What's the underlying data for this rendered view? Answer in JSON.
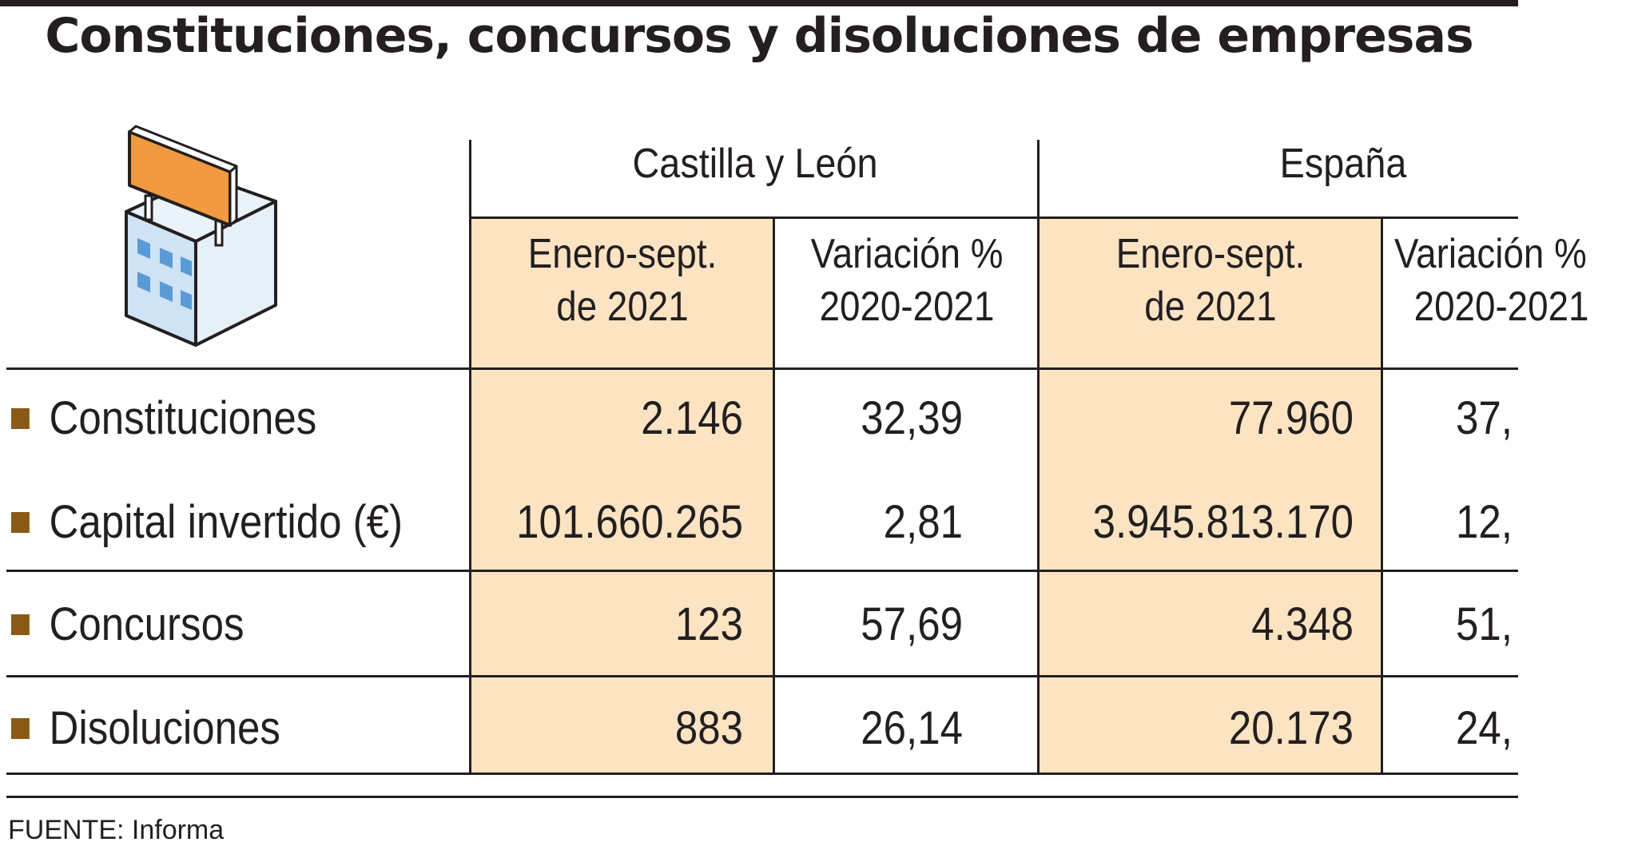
{
  "chart_data": {
    "type": "table",
    "title": "Constituciones, concursos y disoluciones de empresas",
    "groups": [
      "Castilla y León",
      "España"
    ],
    "columns": [
      {
        "group": "Castilla y León",
        "line1": "Enero-sept.",
        "line2": "de 2021"
      },
      {
        "group": "Castilla y León",
        "line1": "Variación %",
        "line2": "2020-2021"
      },
      {
        "group": "España",
        "line1": "Enero-sept.",
        "line2": "de 2021"
      },
      {
        "group": "España",
        "line1": "Variación %",
        "line2": "2020-2021"
      }
    ],
    "rows": [
      {
        "label": "Constituciones",
        "values": [
          "2.146",
          "32,39",
          "77.960",
          "37,"
        ]
      },
      {
        "label": "Capital invertido (€)",
        "values": [
          "101.660.265",
          "2,81",
          "3.945.813.170",
          "12,"
        ]
      },
      {
        "label": "Concursos",
        "values": [
          "123",
          "57,69",
          "4.348",
          "51,"
        ]
      },
      {
        "label": "Disoluciones",
        "values": [
          "883",
          "26,14",
          "20.173",
          "24,"
        ]
      }
    ],
    "source": "FUENTE: Informa"
  },
  "colors": {
    "highlight_column": "#fce4c3",
    "bullet": "#8a5a16",
    "icon_sign": "#f29a3f",
    "icon_building": "#cfe3f5",
    "icon_window": "#5b9bd5"
  },
  "icons": {
    "header_illustration": "building-icon"
  }
}
